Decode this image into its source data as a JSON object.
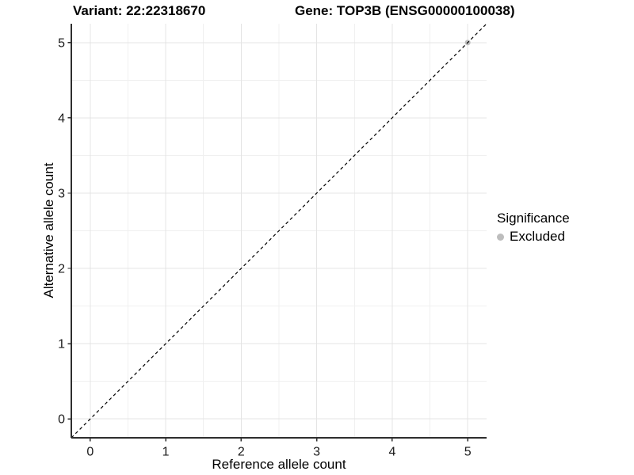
{
  "header": {
    "title_left": "Variant: 22:22318670",
    "title_right": "Gene: TOP3B (ENSG00000100038)"
  },
  "legend": {
    "title": "Significance",
    "items": [
      {
        "label": "Excluded",
        "color": "#bdbdbd"
      }
    ]
  },
  "chart_data": {
    "type": "scatter",
    "title": "Variant: 22:22318670   Gene: TOP3B (ENSG00000100038)",
    "xlabel": "Reference allele count",
    "ylabel": "Alternative allele count",
    "xlim": [
      -0.25,
      5.25
    ],
    "ylim": [
      -0.25,
      5.25
    ],
    "xticks": [
      0,
      1,
      2,
      3,
      4,
      5
    ],
    "yticks": [
      0,
      1,
      2,
      3,
      4,
      5
    ],
    "grid": "major and minor gridlines, light grey on white",
    "legend_position": "right",
    "legend_title": "Significance",
    "series": [
      {
        "name": "Excluded",
        "color": "#bdbdbd",
        "points": [
          {
            "x": 5,
            "y": 5
          }
        ]
      }
    ],
    "reference_line": {
      "type": "identity y=x",
      "from": [
        -0.25,
        -0.25
      ],
      "to": [
        5.25,
        5.25
      ],
      "style": "dashed",
      "color": "#000000"
    },
    "colors": {
      "axis_line": "#2e2e2e",
      "tick_label": "#1a1a1a",
      "grid_major": "#e4e4e4",
      "grid_minor": "#f0f0f0"
    }
  }
}
